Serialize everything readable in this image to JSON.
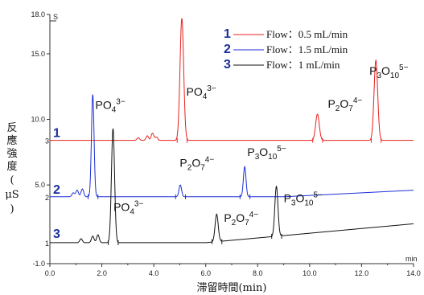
{
  "chart_data": {
    "type": "line",
    "xlabel": "滞留時間(min)",
    "ylabel": [
      "反",
      "應",
      "強",
      "度",
      "(",
      "μS",
      ")"
    ],
    "xlim": [
      0.0,
      14.0
    ],
    "ylim": [
      -1.0,
      18.0
    ],
    "xticks": [
      "0.0",
      "2.0",
      "4.0",
      "6.0",
      "8.0",
      "10.0",
      "12.0",
      "14.0"
    ],
    "yticks": [
      {
        "v": 18.0,
        "label": "18.0"
      },
      {
        "v": 15.0,
        "label": "15.0"
      },
      {
        "v": 10.0,
        "label": "10.0"
      },
      {
        "v": 5.0,
        "label": "5.0"
      },
      {
        "v": -1.0,
        "label": "-1.0"
      }
    ],
    "x_unit": "min",
    "y_unit": "S",
    "legend": [
      {
        "num": "1",
        "text": "Flow：0.5 mL/min",
        "color": "#e8201c"
      },
      {
        "num": "2",
        "text": "Flow：1.5 mL/min",
        "color": "#1c2fd6"
      },
      {
        "num": "3",
        "text": "Flow：1 mL/min",
        "color": "#111111"
      }
    ],
    "series": [
      {
        "name": "1",
        "color": "#e8201c",
        "baseline": 8.4,
        "small_label": "3",
        "peaks": [
          {
            "rt": 5.08,
            "height": 9.3,
            "width": 0.07,
            "label": {
              "base": "PO",
              "sub": "4",
              "sup": "3−",
              "x": 5.25,
              "y": 11.8
            }
          },
          {
            "rt": 10.3,
            "height": 2.0,
            "width": 0.07,
            "label": {
              "base": "P",
              "sub2": "2",
              "base2": "O",
              "sub": "7",
              "sup": "4−",
              "x": 10.7,
              "y": 10.9
            }
          },
          {
            "rt": 12.55,
            "height": 6.1,
            "width": 0.07,
            "label": {
              "base": "P",
              "sub2": "3",
              "base2": "O",
              "sub": "10",
              "sup": "5−",
              "x": 12.3,
              "y": 13.4
            }
          }
        ],
        "minor": [
          [
            3.4,
            0.2
          ],
          [
            3.75,
            0.35
          ],
          [
            3.95,
            0.55
          ],
          [
            4.1,
            0.25
          ]
        ]
      },
      {
        "name": "2",
        "color": "#1c2fd6",
        "baseline": 4.1,
        "small_label": "2",
        "peaks": [
          {
            "rt": 1.65,
            "height": 7.8,
            "width": 0.05,
            "label": {
              "base": "PO",
              "sub": "4",
              "sup": "3−",
              "x": 1.75,
              "y": 10.8
            }
          },
          {
            "rt": 5.02,
            "height": 0.9,
            "width": 0.05,
            "label": {
              "base": "P",
              "sub2": "2",
              "base2": "O",
              "sub": "7",
              "sup": "4−",
              "x": 5.0,
              "y": 6.4
            }
          },
          {
            "rt": 7.5,
            "height": 2.3,
            "width": 0.05,
            "label": {
              "base": "P",
              "sub2": "3",
              "base2": "O",
              "sub": "10",
              "sup": "5−",
              "x": 7.6,
              "y": 7.2
            }
          }
        ],
        "minor": [
          [
            0.9,
            0.3
          ],
          [
            1.05,
            0.5
          ],
          [
            1.25,
            0.6
          ]
        ]
      },
      {
        "name": "3",
        "color": "#111111",
        "baseline": 0.6,
        "small_label": "1",
        "peaks": [
          {
            "rt": 2.43,
            "height": 8.7,
            "width": 0.06,
            "label": {
              "base": "PO",
              "sub": "4",
              "sup": "3−",
              "x": 2.45,
              "y": 3.0
            }
          },
          {
            "rt": 6.42,
            "height": 2.1,
            "width": 0.06,
            "label": {
              "base": "P",
              "sub2": "2",
              "base2": "O",
              "sub": "7",
              "sup": "4−",
              "x": 6.7,
              "y": 2.2
            }
          },
          {
            "rt": 8.72,
            "height": 3.8,
            "width": 0.06,
            "label": {
              "base": "P",
              "sub2": "3",
              "base2": "O",
              "sub": "10",
              "sup": "5−",
              "x": 9.0,
              "y": 3.7
            }
          }
        ],
        "minor": [
          [
            1.2,
            0.3
          ],
          [
            1.65,
            0.5
          ],
          [
            1.85,
            0.6
          ]
        ]
      }
    ]
  }
}
